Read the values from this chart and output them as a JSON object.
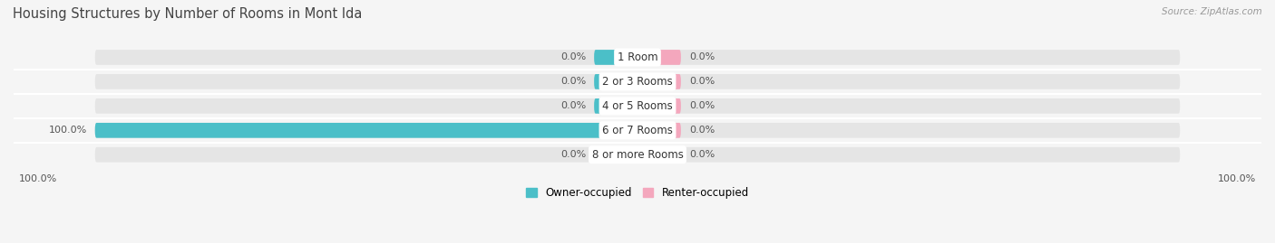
{
  "title": "Housing Structures by Number of Rooms in Mont Ida",
  "source": "Source: ZipAtlas.com",
  "categories": [
    "1 Room",
    "2 or 3 Rooms",
    "4 or 5 Rooms",
    "6 or 7 Rooms",
    "8 or more Rooms"
  ],
  "owner_values": [
    0.0,
    0.0,
    0.0,
    100.0,
    0.0
  ],
  "renter_values": [
    0.0,
    0.0,
    0.0,
    0.0,
    0.0
  ],
  "owner_color": "#4bbfc8",
  "renter_color": "#f4a7bd",
  "bar_bg_color": "#e5e5e5",
  "bar_height": 0.62,
  "min_bar_width": 8.0,
  "title_fontsize": 10.5,
  "label_fontsize": 8,
  "category_fontsize": 8.5,
  "legend_fontsize": 8.5,
  "source_fontsize": 7.5,
  "bg_color": "#f5f5f5",
  "text_color": "#555555",
  "center_label_color": "#333333"
}
